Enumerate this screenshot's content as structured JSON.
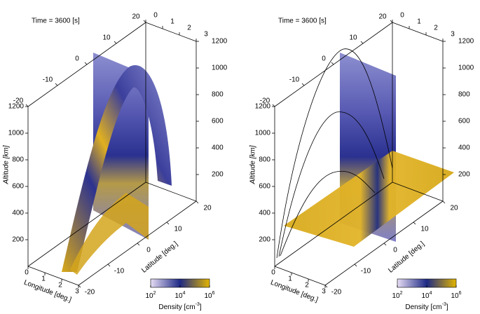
{
  "chart_data": [
    {
      "type": "slice3d",
      "title": "Time =  3600 [s]",
      "xlabel": "Longitude [deg.]",
      "ylabel": "Latitude [deg.]",
      "zlabel": "Altitude [km]",
      "xlim": [
        0,
        3
      ],
      "xticks": [
        0,
        1,
        2,
        3
      ],
      "ylim": [
        -20,
        20
      ],
      "yticks": [
        -20,
        -10,
        0,
        10,
        20
      ],
      "zlim": [
        0,
        1200
      ],
      "zticks": [
        200,
        400,
        600,
        800,
        1000,
        1200
      ],
      "colorbar": {
        "label": "Density [cm",
        "label_exponent": "-3",
        "label_close": "]",
        "log": true,
        "clim": [
          100,
          1000000
        ],
        "ticks": [
          {
            "value": 100,
            "base": "10",
            "exponent": "2"
          },
          {
            "value": 10000,
            "base": "10",
            "exponent": "4"
          },
          {
            "value": 1000000,
            "base": "10",
            "exponent": "6"
          }
        ]
      }
    },
    {
      "type": "slice3d",
      "title": "Time =  3600 [s]",
      "xlabel": "Longitude [deg.]",
      "ylabel": "Latitude [deg.]",
      "zlabel": "Altitude [km]",
      "xlim": [
        0,
        3
      ],
      "xticks": [
        0,
        1,
        2,
        3
      ],
      "ylim": [
        -20,
        20
      ],
      "yticks": [
        -20,
        -10,
        0,
        10,
        20
      ],
      "zlim": [
        0,
        1200
      ],
      "zticks": [
        200,
        400,
        600,
        800,
        1000,
        1200
      ],
      "colorbar": {
        "label": "Density [cm",
        "label_exponent": "-3",
        "label_close": "]",
        "log": true,
        "clim": [
          100,
          1000000
        ],
        "ticks": [
          {
            "value": 100,
            "base": "10",
            "exponent": "2"
          },
          {
            "value": 10000,
            "base": "10",
            "exponent": "4"
          },
          {
            "value": 1000000,
            "base": "10",
            "exponent": "6"
          }
        ]
      }
    }
  ]
}
